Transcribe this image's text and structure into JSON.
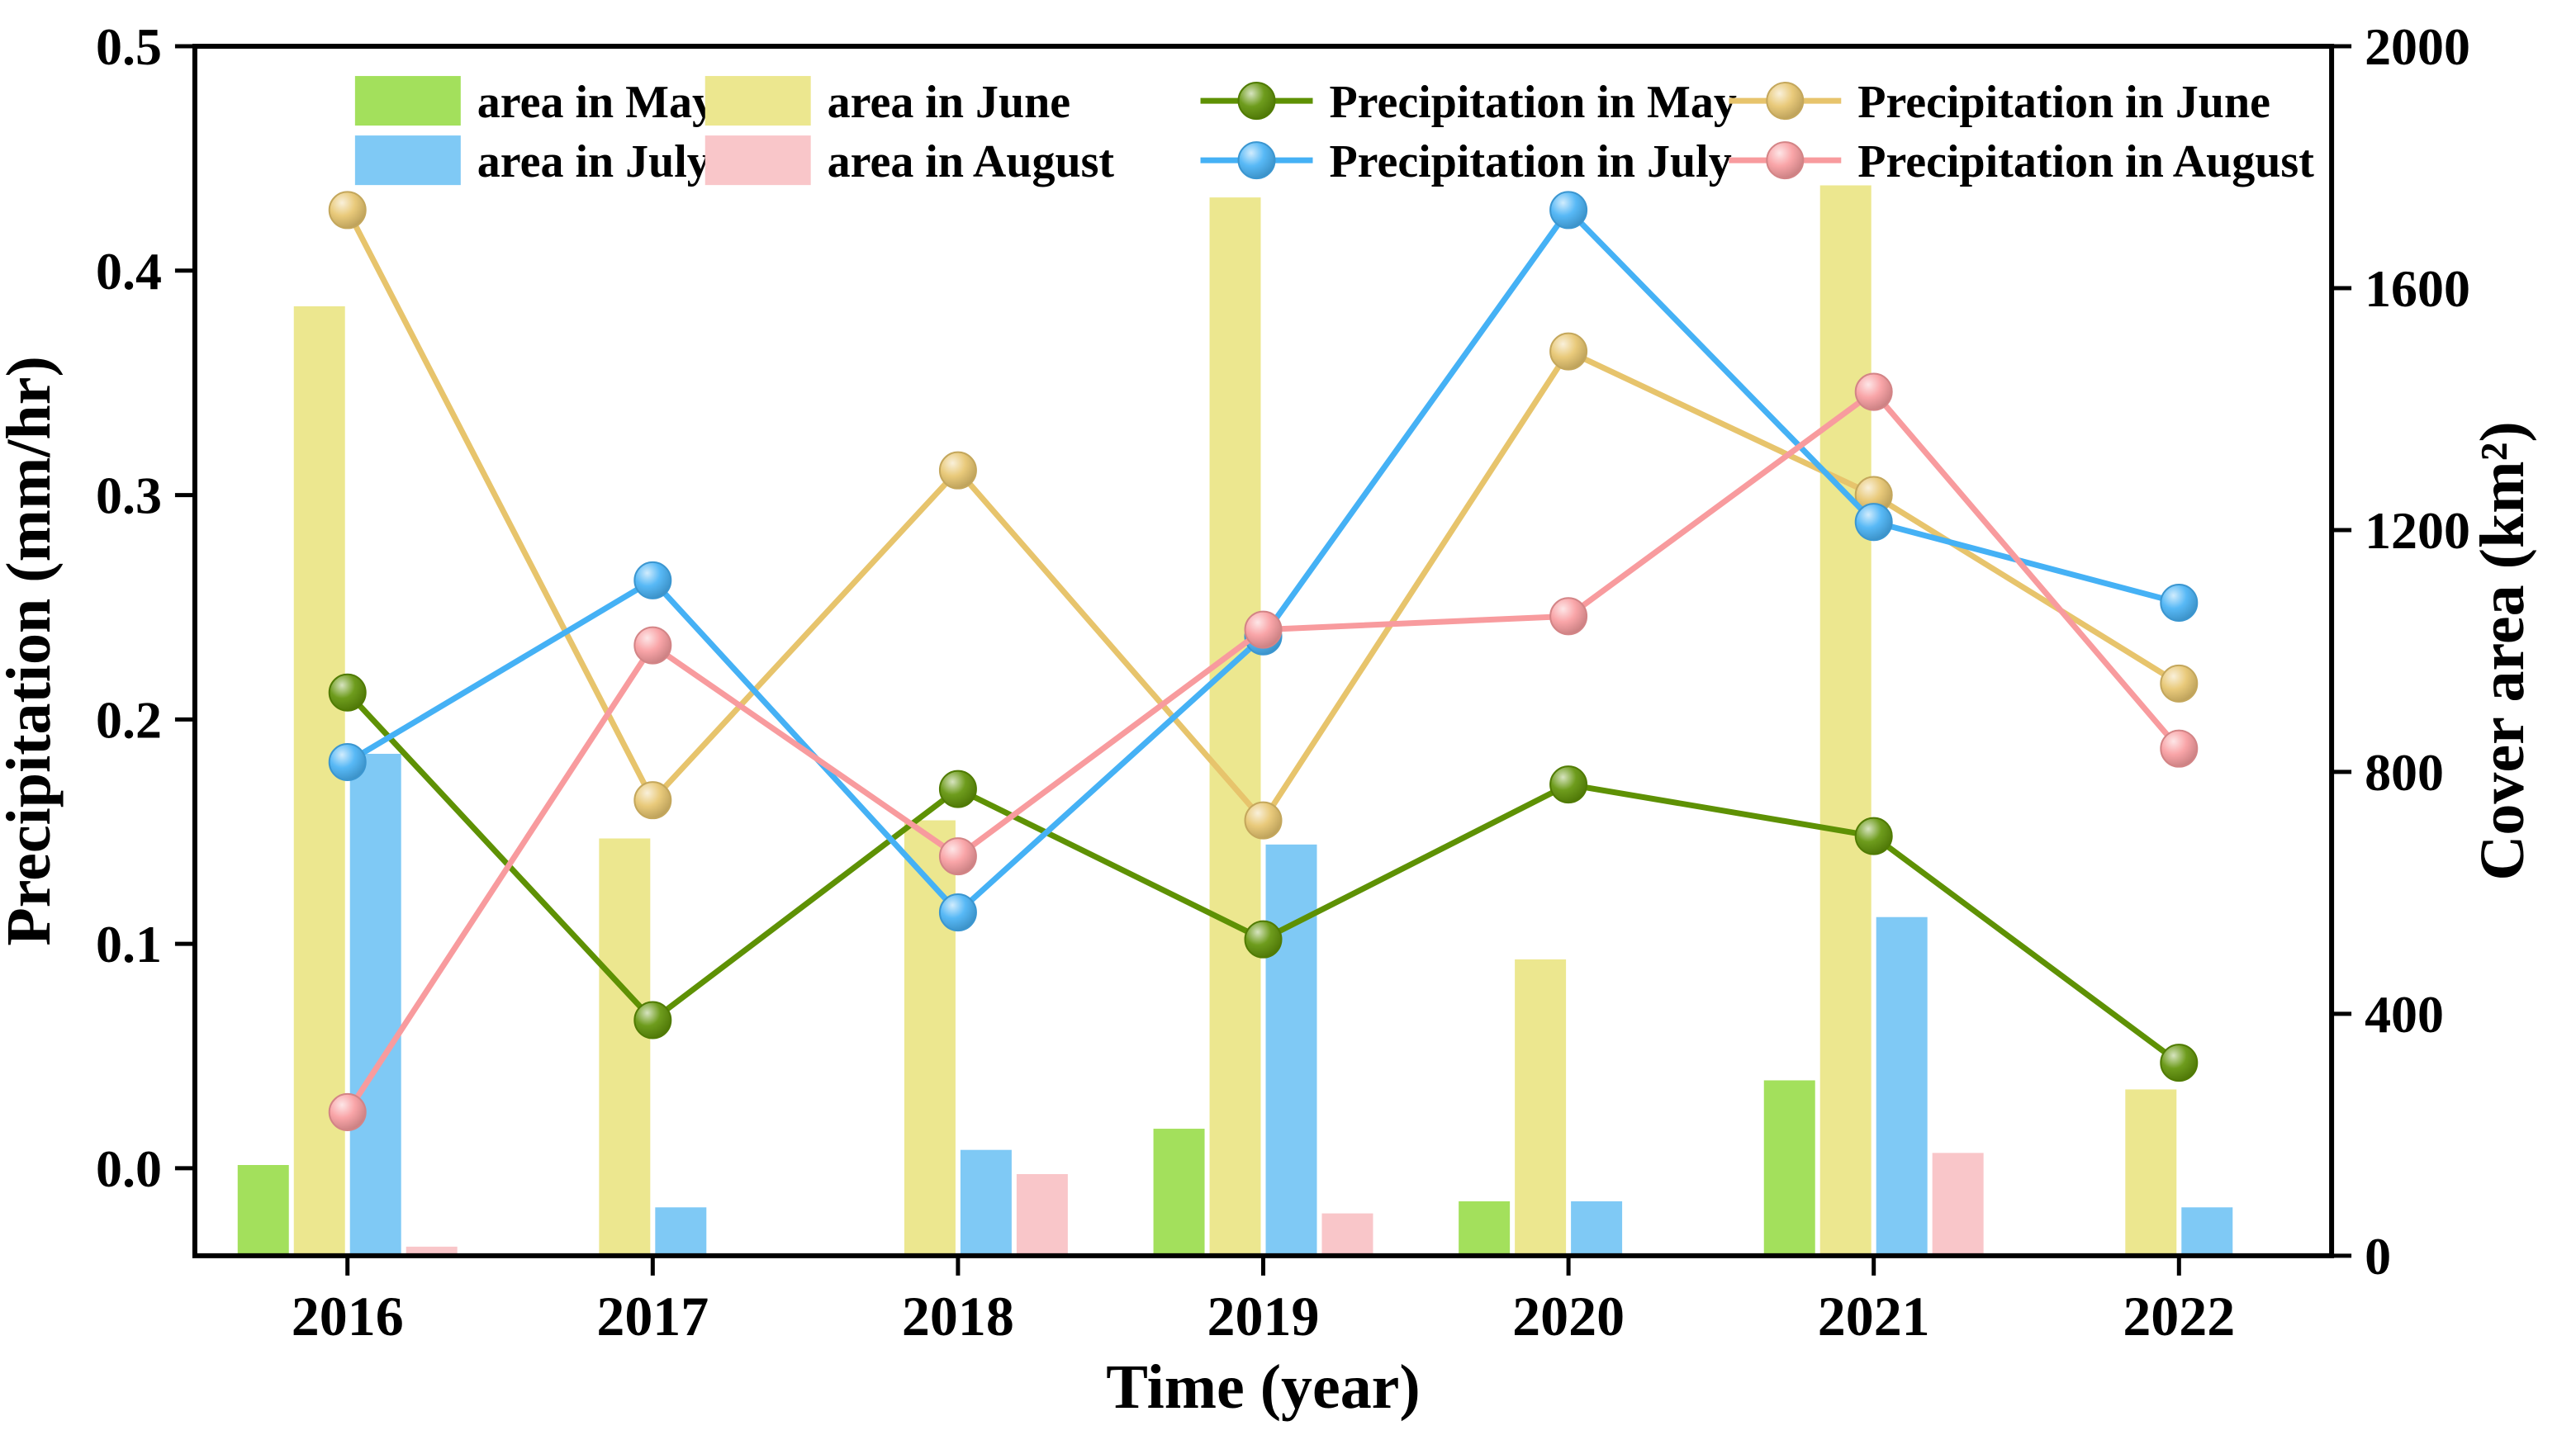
{
  "chart_data": {
    "type": "bar+line",
    "title": "",
    "xlabel": "Time (year)",
    "ylabel_left": "Precipitation (mm/hr)",
    "ylabel_right": "Cover area (km²)",
    "categories": [
      "2016",
      "2017",
      "2018",
      "2019",
      "2020",
      "2021",
      "2022"
    ],
    "left_axis": {
      "axis_min": -0.039,
      "max": 0.5,
      "ticks": [
        0.0,
        0.1,
        0.2,
        0.3,
        0.4,
        0.5
      ]
    },
    "right_axis": {
      "min": 0,
      "max": 2000,
      "ticks": [
        0,
        400,
        800,
        1200,
        1600,
        2000
      ]
    },
    "grid": false,
    "legend_position": "top",
    "bar_series": [
      {
        "name": "area in May",
        "color": "#a3e05c",
        "values": [
          150,
          0,
          0,
          210,
          90,
          290,
          0
        ]
      },
      {
        "name": "area in June",
        "color": "#ece78f",
        "values": [
          1570,
          690,
          720,
          1750,
          490,
          1770,
          275
        ]
      },
      {
        "name": "area in July",
        "color": "#7fc9f5",
        "values": [
          830,
          80,
          175,
          680,
          90,
          560,
          80
        ]
      },
      {
        "name": "area in August",
        "color": "#f9c6c9",
        "values": [
          15,
          0,
          135,
          70,
          0,
          170,
          0
        ]
      }
    ],
    "line_series": [
      {
        "name": "Precipitation in May",
        "color": "#5e9104",
        "values": [
          0.212,
          0.066,
          0.169,
          0.102,
          0.171,
          0.148,
          0.047
        ]
      },
      {
        "name": "Precipitation in June",
        "color": "#e7c46c",
        "values": [
          0.427,
          0.164,
          0.311,
          0.155,
          0.364,
          0.3,
          0.216
        ]
      },
      {
        "name": "Precipitation in July",
        "color": "#45b1f5",
        "values": [
          0.181,
          0.262,
          0.114,
          0.237,
          0.427,
          0.288,
          0.252
        ]
      },
      {
        "name": "Precipitation in August",
        "color": "#f89b9e",
        "values": [
          0.025,
          0.233,
          0.139,
          0.24,
          0.246,
          0.346,
          0.187
        ]
      }
    ]
  }
}
